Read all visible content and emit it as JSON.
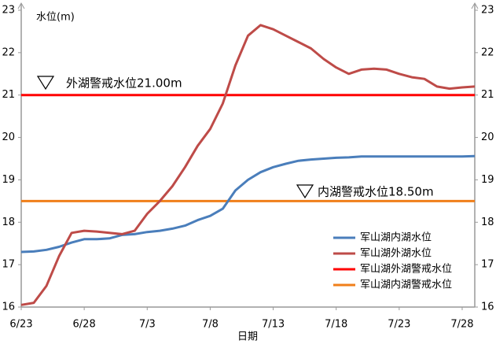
{
  "chart_data": {
    "type": "line",
    "y_label": "水位(m)",
    "x_label": "日期",
    "categories": [
      "6/23",
      null,
      null,
      null,
      null,
      "6/28",
      null,
      null,
      null,
      null,
      "7/3",
      null,
      null,
      null,
      null,
      "7/8",
      null,
      null,
      null,
      null,
      "7/13",
      null,
      null,
      null,
      null,
      "7/18",
      null,
      null,
      null,
      null,
      "7/23",
      null,
      null,
      null,
      null,
      "7/28",
      null
    ],
    "series": [
      {
        "name": "军山湖内湖水位",
        "color": "#4a7ebb",
        "values": [
          17.3,
          17.31,
          17.35,
          17.42,
          17.52,
          17.6,
          17.6,
          17.62,
          17.7,
          17.72,
          17.77,
          17.8,
          17.85,
          17.92,
          18.05,
          18.15,
          18.32,
          18.75,
          19.0,
          19.18,
          19.3,
          19.38,
          19.45,
          19.48,
          19.5,
          19.52,
          19.53,
          19.55,
          19.55,
          19.55,
          19.55,
          19.55,
          19.55,
          19.55,
          19.55,
          19.55,
          19.56
        ]
      },
      {
        "name": "军山湖外湖水位",
        "color": "#be4b48",
        "values": [
          16.05,
          16.1,
          16.5,
          17.2,
          17.75,
          17.8,
          17.78,
          17.75,
          17.72,
          17.8,
          18.2,
          18.5,
          18.85,
          19.3,
          19.8,
          20.2,
          20.8,
          21.7,
          22.4,
          22.65,
          22.55,
          22.4,
          22.25,
          22.1,
          21.85,
          21.65,
          21.5,
          21.6,
          21.62,
          21.6,
          21.5,
          21.42,
          21.38,
          21.2,
          21.15,
          21.18,
          21.2
        ]
      },
      {
        "name": "军山湖外湖警戒水位",
        "color": "#ff0000",
        "values": [
          21,
          21,
          21,
          21,
          21,
          21,
          21,
          21,
          21,
          21,
          21,
          21,
          21,
          21,
          21,
          21,
          21,
          21,
          21,
          21,
          21,
          21,
          21,
          21,
          21,
          21,
          21,
          21,
          21,
          21,
          21,
          21,
          21,
          21,
          21,
          21,
          21
        ]
      },
      {
        "name": "军山湖内湖警戒水位",
        "color": "#f07f1a",
        "values": [
          18.5,
          18.5,
          18.5,
          18.5,
          18.5,
          18.5,
          18.5,
          18.5,
          18.5,
          18.5,
          18.5,
          18.5,
          18.5,
          18.5,
          18.5,
          18.5,
          18.5,
          18.5,
          18.5,
          18.5,
          18.5,
          18.5,
          18.5,
          18.5,
          18.5,
          18.5,
          18.5,
          18.5,
          18.5,
          18.5,
          18.5,
          18.5,
          18.5,
          18.5,
          18.5,
          18.5,
          18.5
        ]
      }
    ],
    "annotations": [
      "外湖警戒水位21.00m",
      "内湖警戒水位18.50m"
    ],
    "ylim": [
      16,
      23
    ],
    "yticks": [
      16,
      17,
      18,
      19,
      20,
      21,
      22,
      23
    ],
    "y2lim": [
      16,
      23
    ],
    "y2ticks": [
      16,
      17,
      18,
      19,
      20,
      21,
      22,
      23
    ],
    "legend": "lower-right"
  }
}
